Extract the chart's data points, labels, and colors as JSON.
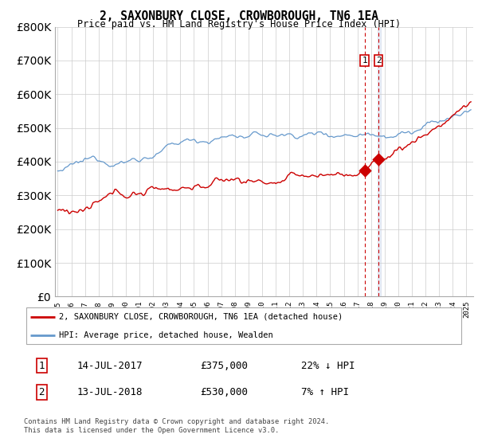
{
  "title": "2, SAXONBURY CLOSE, CROWBOROUGH, TN6 1EA",
  "subtitle": "Price paid vs. HM Land Registry's House Price Index (HPI)",
  "legend_line1": "2, SAXONBURY CLOSE, CROWBOROUGH, TN6 1EA (detached house)",
  "legend_line2": "HPI: Average price, detached house, Wealden",
  "transaction1_date": "14-JUL-2017",
  "transaction1_price": 375000,
  "transaction1_hpi_text": "22% ↓ HPI",
  "transaction2_date": "13-JUL-2018",
  "transaction2_price": 530000,
  "transaction2_hpi_text": "7% ↑ HPI",
  "footer": "Contains HM Land Registry data © Crown copyright and database right 2024.\nThis data is licensed under the Open Government Licence v3.0.",
  "hpi_color": "#6699cc",
  "price_color": "#cc0000",
  "vline1_color": "#cc0000",
  "vspan_color": "#aabbdd",
  "background_color": "#ffffff",
  "grid_color": "#cccccc",
  "ylim_max": 800000,
  "yticks": [
    0,
    100000,
    200000,
    300000,
    400000,
    500000,
    600000,
    700000,
    800000
  ]
}
